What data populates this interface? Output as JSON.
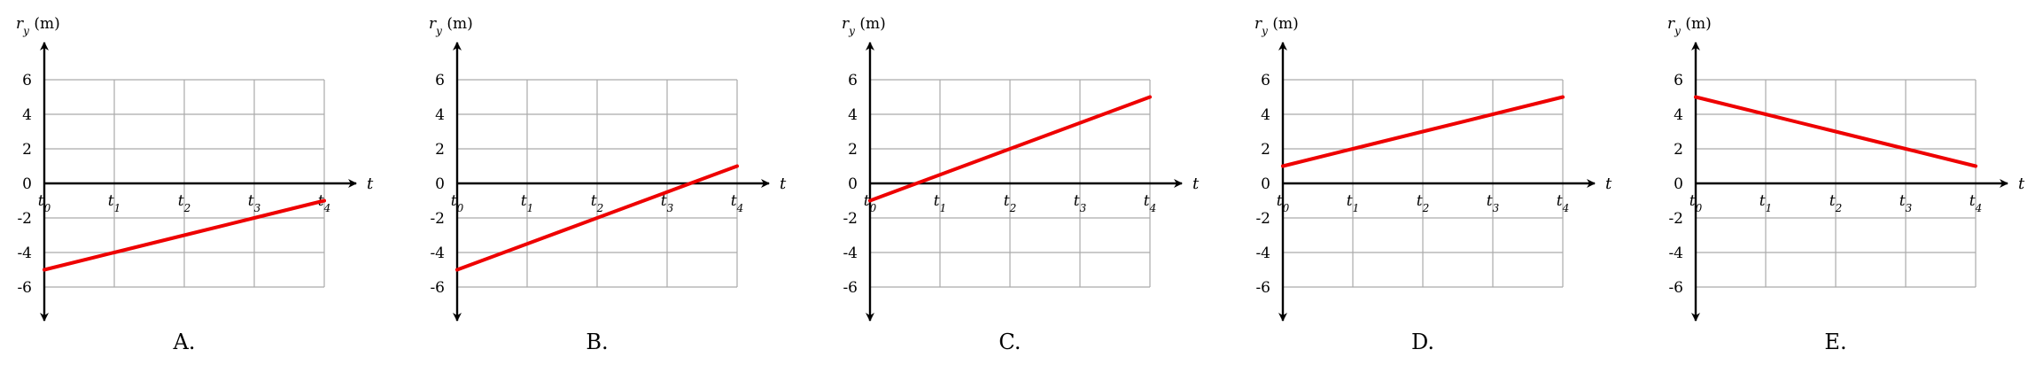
{
  "colors": {
    "series": "#ee0000",
    "grid": "#aaaaaa",
    "axis": "#000000"
  },
  "chart_data": [
    {
      "type": "line",
      "label": "A.",
      "ylabel": "r_y (m)",
      "xlabel": "t",
      "categories": [
        "t0",
        "t1",
        "t2",
        "t3",
        "t4"
      ],
      "yticks": [
        6,
        4,
        2,
        0,
        -2,
        -4,
        -6
      ],
      "ylim": [
        -6,
        6
      ],
      "grid": true,
      "series": [
        {
          "values": [
            -5,
            -4,
            -3,
            -2,
            -1
          ]
        }
      ]
    },
    {
      "type": "line",
      "label": "B.",
      "ylabel": "r_y (m)",
      "xlabel": "t",
      "categories": [
        "t0",
        "t1",
        "t2",
        "t3",
        "t4"
      ],
      "yticks": [
        6,
        4,
        2,
        0,
        -2,
        -4,
        -6
      ],
      "ylim": [
        -6,
        6
      ],
      "grid": true,
      "series": [
        {
          "values": [
            -5,
            -3.5,
            -2,
            -0.5,
            1
          ]
        }
      ]
    },
    {
      "type": "line",
      "label": "C.",
      "ylabel": "r_y (m)",
      "xlabel": "t",
      "categories": [
        "t0",
        "t1",
        "t2",
        "t3",
        "t4"
      ],
      "yticks": [
        6,
        4,
        2,
        0,
        -2,
        -4,
        -6
      ],
      "ylim": [
        -6,
        6
      ],
      "grid": true,
      "series": [
        {
          "values": [
            -1,
            0.5,
            2,
            3.5,
            5
          ]
        }
      ]
    },
    {
      "type": "line",
      "label": "D.",
      "ylabel": "r_y (m)",
      "xlabel": "t",
      "categories": [
        "t0",
        "t1",
        "t2",
        "t3",
        "t4"
      ],
      "yticks": [
        6,
        4,
        2,
        0,
        -2,
        -4,
        -6
      ],
      "ylim": [
        -6,
        6
      ],
      "grid": true,
      "series": [
        {
          "values": [
            1,
            2,
            3,
            4,
            5
          ]
        }
      ]
    },
    {
      "type": "line",
      "label": "E.",
      "ylabel": "r_y (m)",
      "xlabel": "t",
      "categories": [
        "t0",
        "t1",
        "t2",
        "t3",
        "t4"
      ],
      "yticks": [
        6,
        4,
        2,
        0,
        -2,
        -4,
        -6
      ],
      "ylim": [
        -6,
        6
      ],
      "grid": true,
      "series": [
        {
          "values": [
            5,
            4,
            3,
            2,
            1
          ]
        }
      ]
    }
  ]
}
